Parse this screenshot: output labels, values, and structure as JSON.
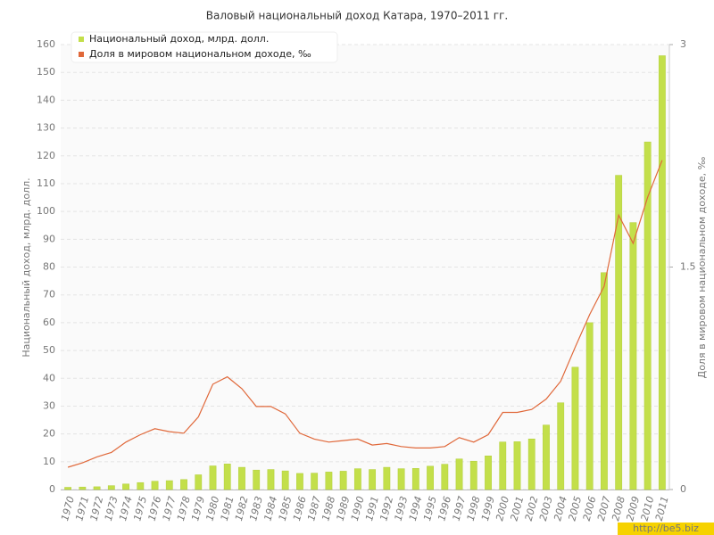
{
  "chart_data": {
    "type": "bar",
    "title": "Валовый национальный доход Катара, 1970–2011 гг.",
    "y_label": "Национальный доход, млрд. долл.",
    "y2_label": "Доля в мировом национальном доходе, ‰",
    "categories": [
      "1970",
      "1971",
      "1972",
      "1973",
      "1974",
      "1975",
      "1976",
      "1977",
      "1978",
      "1979",
      "1980",
      "1981",
      "1982",
      "1983",
      "1984",
      "1985",
      "1986",
      "1987",
      "1988",
      "1989",
      "1990",
      "1991",
      "1992",
      "1993",
      "1994",
      "1995",
      "1996",
      "1997",
      "1998",
      "1999",
      "2000",
      "2001",
      "2002",
      "2003",
      "2004",
      "2005",
      "2006",
      "2007",
      "2008",
      "2009",
      "2010",
      "2011"
    ],
    "series": [
      {
        "name": "Национальный доход, млрд. долл.",
        "type": "bar",
        "color": "#c3df4a",
        "values": [
          0.8,
          0.9,
          1.0,
          1.4,
          2.0,
          2.5,
          3.0,
          3.2,
          3.6,
          5.3,
          8.5,
          9.2,
          8.0,
          7.0,
          7.2,
          6.7,
          5.8,
          5.9,
          6.3,
          6.6,
          7.5,
          7.2,
          8.0,
          7.5,
          7.6,
          8.4,
          9.1,
          11.0,
          10.2,
          12.1,
          17.1,
          17.2,
          18.2,
          23.2,
          31.2,
          44,
          60,
          78,
          113,
          96,
          125,
          156
        ]
      },
      {
        "name": "Доля в мировом национальном доходе, ‰",
        "type": "line",
        "axis": "y2",
        "color": "#e0683a",
        "values": [
          0.15,
          0.18,
          0.22,
          0.25,
          0.32,
          0.37,
          0.41,
          0.39,
          0.38,
          0.49,
          0.71,
          0.76,
          0.68,
          0.56,
          0.56,
          0.51,
          0.38,
          0.34,
          0.32,
          0.33,
          0.34,
          0.3,
          0.31,
          0.29,
          0.28,
          0.28,
          0.29,
          0.35,
          0.32,
          0.37,
          0.52,
          0.52,
          0.54,
          0.61,
          0.73,
          0.96,
          1.18,
          1.37,
          1.85,
          1.66,
          1.97,
          2.22
        ]
      }
    ],
    "ylim": [
      0,
      160
    ],
    "yticks": [
      0,
      10,
      20,
      30,
      40,
      50,
      60,
      70,
      80,
      90,
      100,
      110,
      120,
      130,
      140,
      150,
      160
    ],
    "y2lim": [
      0,
      3
    ],
    "y2ticks": [
      0,
      1.5,
      3
    ],
    "grid": true,
    "legend": "upper left",
    "watermark": "http://be5.biz"
  }
}
